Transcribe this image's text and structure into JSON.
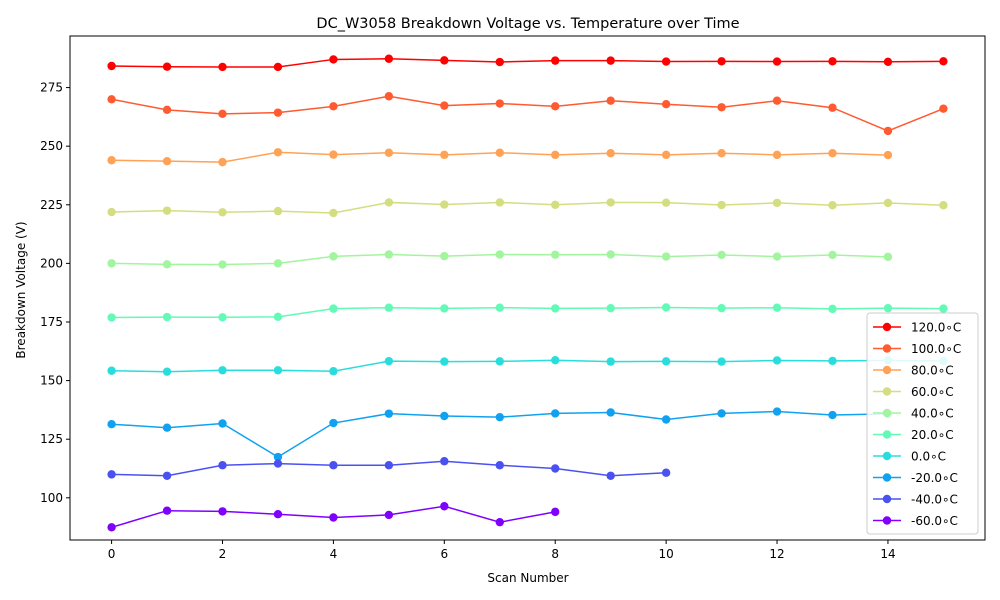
{
  "chart_data": {
    "type": "line",
    "title": "DC_W3058 Breakdown Voltage vs. Temperature over Time",
    "xlabel": "Scan Number",
    "ylabel": "Breakdown Voltage (V)",
    "xlim": [
      -0.75,
      15.75
    ],
    "ylim": [
      82,
      297
    ],
    "xticks": [
      0,
      2,
      4,
      6,
      8,
      10,
      12,
      14
    ],
    "yticks": [
      100,
      125,
      150,
      175,
      200,
      225,
      250,
      275
    ],
    "grid": false,
    "legend_position": "lower-right",
    "series": [
      {
        "name": "120.0$^\\circ$C",
        "legend_label": "120.0∘C",
        "color": "#ff0000",
        "x": [
          0,
          1,
          2,
          3,
          4,
          5,
          6,
          7,
          8,
          9,
          10,
          11,
          12,
          13,
          14,
          15
        ],
        "values": [
          284.2,
          283.9,
          283.8,
          283.8,
          287.0,
          287.3,
          286.6,
          285.9,
          286.5,
          286.5,
          286.1,
          286.2,
          286.1,
          286.2,
          286.0,
          286.2
        ]
      },
      {
        "name": "100.0$^\\circ$C",
        "legend_label": "100.0∘C",
        "color": "#ff5a30",
        "x": [
          0,
          1,
          2,
          3,
          4,
          5,
          6,
          7,
          8,
          9,
          10,
          11,
          12,
          13,
          14,
          15
        ],
        "values": [
          270.0,
          265.5,
          263.8,
          264.3,
          267.0,
          271.3,
          267.3,
          268.2,
          267.0,
          269.4,
          267.9,
          266.6,
          269.4,
          266.4,
          256.5,
          266.0
        ]
      },
      {
        "name": "80.0$^\\circ$C",
        "legend_label": "80.0∘C",
        "color": "#ffa256",
        "x": [
          0,
          1,
          2,
          3,
          4,
          5,
          6,
          7,
          8,
          9,
          10,
          11,
          12,
          13,
          14
        ],
        "values": [
          244.0,
          243.6,
          243.2,
          247.4,
          246.4,
          247.2,
          246.3,
          247.2,
          246.3,
          247.0,
          246.3,
          247.0,
          246.3,
          247.0,
          246.2
        ]
      },
      {
        "name": "60.0$^\\circ$C",
        "legend_label": "60.0∘C",
        "color": "#d4dd80",
        "x": [
          0,
          1,
          2,
          3,
          4,
          5,
          6,
          7,
          8,
          9,
          10,
          11,
          12,
          13,
          14,
          15
        ],
        "values": [
          221.9,
          222.5,
          221.8,
          222.3,
          221.5,
          226.0,
          225.1,
          226.0,
          225.0,
          226.0,
          225.9,
          224.9,
          225.8,
          224.8,
          225.8,
          224.8
        ]
      },
      {
        "name": "40.0$^\\circ$C",
        "legend_label": "40.0∘C",
        "color": "#a2f59e",
        "x": [
          0,
          1,
          2,
          3,
          4,
          5,
          6,
          7,
          8,
          9,
          10,
          11,
          12,
          13,
          14
        ],
        "values": [
          200.0,
          199.6,
          199.5,
          200.0,
          203.0,
          203.8,
          203.1,
          203.8,
          203.7,
          203.8,
          202.9,
          203.6,
          202.9,
          203.6,
          202.8
        ]
      },
      {
        "name": "20.0$^\\circ$C",
        "legend_label": "20.0∘C",
        "color": "#62fab6",
        "x": [
          0,
          1,
          2,
          3,
          4,
          5,
          6,
          7,
          8,
          9,
          10,
          11,
          12,
          13,
          14,
          15
        ],
        "values": [
          176.9,
          177.1,
          177.0,
          177.2,
          180.7,
          181.1,
          180.8,
          181.1,
          180.8,
          180.9,
          181.2,
          180.9,
          181.1,
          180.6,
          180.9,
          180.7
        ]
      },
      {
        "name": "0.0$^\\circ$C",
        "legend_label": "0.0∘C",
        "color": "#2adddd",
        "x": [
          0,
          1,
          2,
          3,
          4,
          5,
          6,
          7,
          8,
          9,
          10,
          11,
          12,
          13,
          14,
          15
        ],
        "values": [
          154.2,
          153.8,
          154.4,
          154.4,
          154.0,
          158.3,
          158.1,
          158.2,
          158.7,
          158.1,
          158.2,
          158.1,
          158.6,
          158.4,
          158.6,
          158.4
        ]
      },
      {
        "name": "-20.0$^\\circ$C",
        "legend_label": "-20.0∘C",
        "color": "#10a2f0",
        "x": [
          0,
          1,
          2,
          3,
          4,
          5,
          6,
          7,
          8,
          9,
          10,
          11,
          12,
          13,
          14
        ],
        "values": [
          131.4,
          129.9,
          131.7,
          117.4,
          131.9,
          135.9,
          134.9,
          134.4,
          136.0,
          136.4,
          133.4,
          136.0,
          136.8,
          135.3,
          135.8
        ]
      },
      {
        "name": "-40.0$^\\circ$C",
        "legend_label": "-40.0∘C",
        "color": "#4a51f1",
        "x": [
          0,
          1,
          2,
          3,
          4,
          5,
          6,
          7,
          8,
          9,
          10
        ],
        "values": [
          110.0,
          109.4,
          113.9,
          114.6,
          113.9,
          113.9,
          115.6,
          113.9,
          112.5,
          109.4,
          110.7
        ]
      },
      {
        "name": "-60.0$^\\circ$C",
        "legend_label": "-60.0∘C",
        "color": "#7f00ff",
        "x": [
          0,
          1,
          2,
          3,
          4,
          5,
          6,
          7,
          8
        ],
        "values": [
          87.4,
          94.5,
          94.2,
          93.0,
          91.6,
          92.7,
          96.4,
          89.6,
          94.0
        ]
      }
    ]
  }
}
